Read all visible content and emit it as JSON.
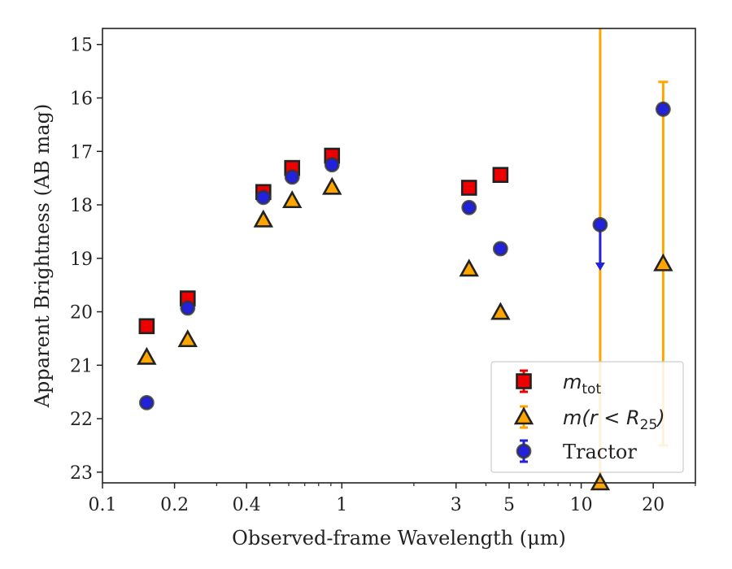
{
  "chart_data": {
    "type": "scatter",
    "title": "",
    "xlabel": "Observed-frame Wavelength (μm)",
    "ylabel": "Apparent Brightness (AB mag)",
    "xscale": "log",
    "xlim": [
      0.1,
      30
    ],
    "ylim": [
      23.2,
      14.7
    ],
    "y_inverted": true,
    "x_ticks": [
      {
        "value": 0.1,
        "label": "0.1"
      },
      {
        "value": 0.2,
        "label": "0.2"
      },
      {
        "value": 0.4,
        "label": "0.4"
      },
      {
        "value": 1,
        "label": "1"
      },
      {
        "value": 3,
        "label": "3"
      },
      {
        "value": 5,
        "label": "5"
      },
      {
        "value": 10,
        "label": "10"
      },
      {
        "value": 20,
        "label": "20"
      }
    ],
    "y_ticks": [
      {
        "value": 15,
        "label": "15"
      },
      {
        "value": 16,
        "label": "16"
      },
      {
        "value": 17,
        "label": "17"
      },
      {
        "value": 18,
        "label": "18"
      },
      {
        "value": 19,
        "label": "19"
      },
      {
        "value": 20,
        "label": "20"
      },
      {
        "value": 21,
        "label": "21"
      },
      {
        "value": 22,
        "label": "22"
      },
      {
        "value": 23,
        "label": "23"
      }
    ],
    "grid": false,
    "legend_position": "lower-right",
    "series": [
      {
        "legend": "m_tot",
        "legend_main": "m",
        "legend_sub": "tot",
        "marker": "square",
        "color": "#ee0000",
        "points": [
          {
            "x": 0.153,
            "y": 20.27
          },
          {
            "x": 0.227,
            "y": 19.75
          },
          {
            "x": 0.47,
            "y": 17.76
          },
          {
            "x": 0.62,
            "y": 17.31
          },
          {
            "x": 0.91,
            "y": 17.08
          },
          {
            "x": 3.4,
            "y": 17.68
          },
          {
            "x": 4.6,
            "y": 17.44
          }
        ]
      },
      {
        "legend": "m(r < R25)",
        "legend_main": "m(r < R",
        "legend_sub": "25",
        "legend_end": ")",
        "marker": "triangle",
        "color": "#ffa500",
        "points": [
          {
            "x": 0.153,
            "y": 20.85
          },
          {
            "x": 0.227,
            "y": 20.52
          },
          {
            "x": 0.47,
            "y": 18.28
          },
          {
            "x": 0.62,
            "y": 17.92
          },
          {
            "x": 0.91,
            "y": 17.67
          },
          {
            "x": 3.4,
            "y": 19.2
          },
          {
            "x": 4.6,
            "y": 20.01
          },
          {
            "x": 12,
            "y": 23.2
          },
          {
            "x": 22,
            "y": 19.1,
            "err_low": 22.5,
            "err_high": 15.7
          }
        ]
      },
      {
        "legend": "Tractor",
        "marker": "circle",
        "color": "#2222dd",
        "points": [
          {
            "x": 0.153,
            "y": 21.7
          },
          {
            "x": 0.227,
            "y": 19.93
          },
          {
            "x": 0.47,
            "y": 17.86
          },
          {
            "x": 0.62,
            "y": 17.48
          },
          {
            "x": 0.91,
            "y": 17.25
          },
          {
            "x": 3.4,
            "y": 18.05
          },
          {
            "x": 4.6,
            "y": 18.82
          },
          {
            "x": 12,
            "y": 18.37,
            "upper_limit_to": 19.2
          },
          {
            "x": 22,
            "y": 16.21
          }
        ]
      }
    ],
    "annotations": [
      {
        "type": "vertical_errorbar",
        "x": 12,
        "y_from": 14.7,
        "y_to": 23.2,
        "color": "#ffa500"
      }
    ]
  }
}
